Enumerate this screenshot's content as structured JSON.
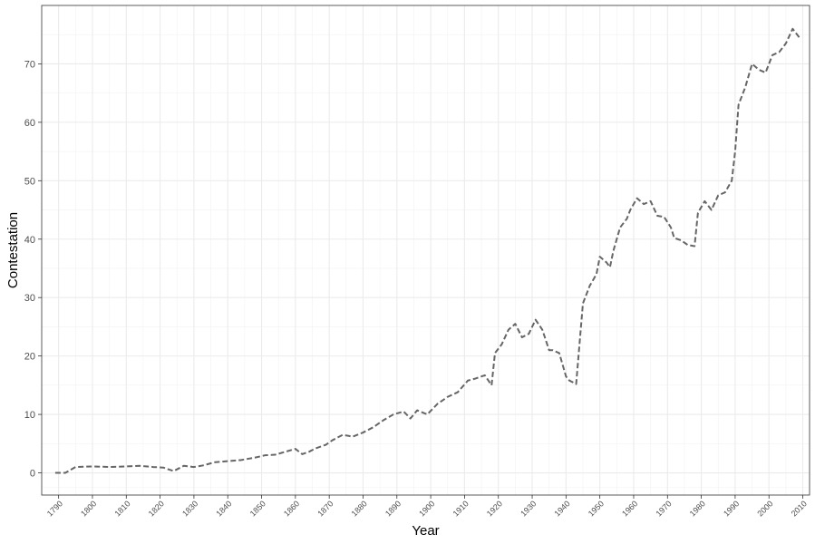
{
  "chart_data": {
    "type": "line",
    "title": "",
    "xlabel": "Year",
    "ylabel": "Contestation",
    "xlim": [
      1785,
      2012
    ],
    "ylim": [
      -3.8,
      80
    ],
    "x_ticks": [
      1790,
      1800,
      1810,
      1820,
      1830,
      1840,
      1850,
      1860,
      1870,
      1880,
      1890,
      1900,
      1910,
      1920,
      1930,
      1940,
      1950,
      1960,
      1970,
      1980,
      1990,
      2000,
      2010
    ],
    "y_ticks": [
      0,
      10,
      20,
      30,
      40,
      50,
      60,
      70
    ],
    "grid": true,
    "legend": "none",
    "line_style": "dashed",
    "line_color": "#666666",
    "series": [
      {
        "x": [
          1789,
          1792,
          1795,
          1800,
          1805,
          1810,
          1814,
          1818,
          1821,
          1824,
          1827,
          1830,
          1833,
          1836,
          1840,
          1844,
          1848,
          1851,
          1854,
          1857,
          1860,
          1862,
          1864,
          1866,
          1869,
          1871,
          1874,
          1877,
          1880,
          1883,
          1886,
          1889,
          1892,
          1894,
          1896,
          1899,
          1902,
          1905,
          1908,
          1911,
          1913,
          1916,
          1918,
          1919,
          1921,
          1923,
          1925,
          1927,
          1929,
          1931,
          1933,
          1935,
          1936,
          1938,
          1940,
          1941,
          1943,
          1945,
          1947,
          1949,
          1950,
          1952,
          1953,
          1954,
          1956,
          1958,
          1959,
          1961,
          1963,
          1965,
          1967,
          1969,
          1971,
          1972,
          1974,
          1976,
          1978,
          1979,
          1981,
          1983,
          1985,
          1987,
          1989,
          1990,
          1991,
          1993,
          1995,
          1997,
          1999,
          2001,
          2003,
          2005,
          2007,
          2009
        ],
        "y": [
          0,
          0,
          1.0,
          1.1,
          1.0,
          1.1,
          1.2,
          1.0,
          0.9,
          0.3,
          1.2,
          1.0,
          1.3,
          1.8,
          2.0,
          2.2,
          2.6,
          3.0,
          3.1,
          3.6,
          4.1,
          3.2,
          3.6,
          4.2,
          4.8,
          5.6,
          6.5,
          6.2,
          6.9,
          7.8,
          9.0,
          10.0,
          10.5,
          9.3,
          10.7,
          10.0,
          11.8,
          13.0,
          13.8,
          15.8,
          16.1,
          16.7,
          15.0,
          20.5,
          22.0,
          24.5,
          25.5,
          23.2,
          23.8,
          26.2,
          24.5,
          21.0,
          21.0,
          20.5,
          16.5,
          15.8,
          15.2,
          29.0,
          32.0,
          34.0,
          37.0,
          36.0,
          35.2,
          38.0,
          42.0,
          43.5,
          45.0,
          47.0,
          46.0,
          46.5,
          44.0,
          43.8,
          42.0,
          40.2,
          39.8,
          39.0,
          38.8,
          44.5,
          46.5,
          45.0,
          47.5,
          48.0,
          50.0,
          55.0,
          63.0,
          66.0,
          70.0,
          69.0,
          68.5,
          71.5,
          72.0,
          73.5,
          76.0,
          74.5
        ]
      }
    ]
  }
}
